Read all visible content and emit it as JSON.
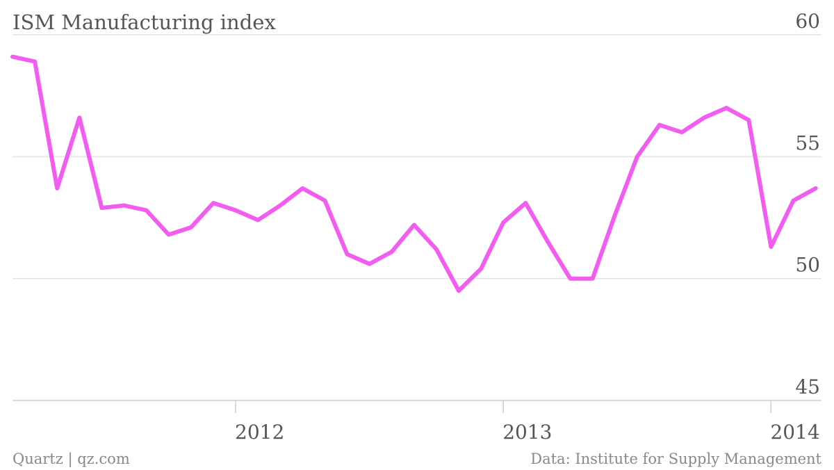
{
  "footer": {
    "source_left": "Quartz | qz.com",
    "source_right": "Data: Institute for Supply Management"
  },
  "chart_data": {
    "type": "line",
    "title": "ISM Manufacturing index",
    "xlabel": "",
    "ylabel": "",
    "ylim": [
      45,
      60
    ],
    "y_ticks": [
      45,
      50,
      55,
      60
    ],
    "x_ticks": [
      {
        "label": "2012",
        "date": "2012-01"
      },
      {
        "label": "2013",
        "date": "2013-01"
      },
      {
        "label": "2014",
        "date": "2014-01"
      }
    ],
    "grid": true,
    "color": "#f25cf0",
    "x": [
      "2011-03",
      "2011-04",
      "2011-05",
      "2011-06",
      "2011-07",
      "2011-08",
      "2011-09",
      "2011-10",
      "2011-11",
      "2011-12",
      "2012-01",
      "2012-02",
      "2012-03",
      "2012-04",
      "2012-05",
      "2012-06",
      "2012-07",
      "2012-08",
      "2012-09",
      "2012-10",
      "2012-11",
      "2012-12",
      "2013-01",
      "2013-02",
      "2013-03",
      "2013-04",
      "2013-05",
      "2013-06",
      "2013-07",
      "2013-08",
      "2013-09",
      "2013-10",
      "2013-11",
      "2013-12",
      "2014-01",
      "2014-02",
      "2014-03"
    ],
    "values": [
      59.1,
      58.9,
      53.7,
      56.6,
      52.9,
      53.0,
      52.8,
      51.8,
      52.1,
      53.1,
      52.8,
      52.4,
      53.0,
      53.7,
      53.2,
      51.0,
      50.6,
      51.1,
      52.2,
      51.2,
      49.5,
      50.4,
      52.3,
      53.1,
      51.5,
      50.0,
      50.0,
      52.6,
      55.0,
      56.3,
      56.0,
      56.6,
      57.0,
      56.5,
      51.3,
      53.2,
      53.7
    ]
  }
}
